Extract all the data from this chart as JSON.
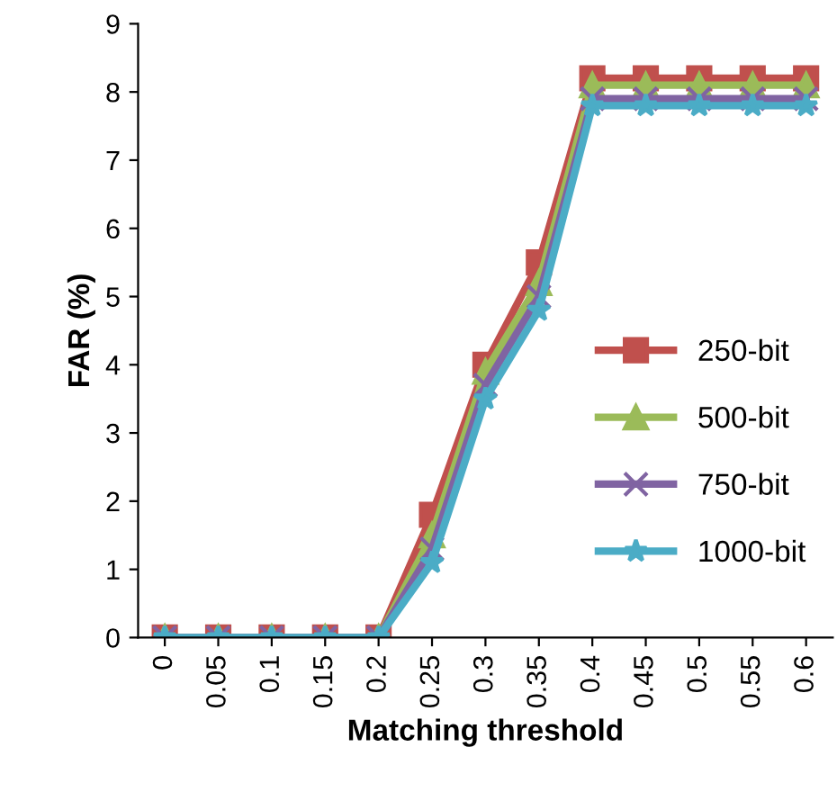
{
  "chart_data": {
    "type": "line",
    "xlabel": "Matching threshold",
    "ylabel": "FAR (%)",
    "categories": [
      "0",
      "0.05",
      "0.1",
      "0.15",
      "0.2",
      "0.25",
      "0.3",
      "0.35",
      "0.4",
      "0.45",
      "0.5",
      "0.55",
      "0.6"
    ],
    "series": [
      {
        "name": "250-bit",
        "color": "#c0504d",
        "marker": "square",
        "values": [
          0,
          0,
          0,
          0,
          0,
          1.8,
          4.0,
          5.5,
          8.2,
          8.2,
          8.2,
          8.2,
          8.2
        ]
      },
      {
        "name": "500-bit",
        "color": "#9bbb59",
        "marker": "triangle",
        "values": [
          0,
          0,
          0,
          0,
          0,
          1.5,
          3.9,
          5.2,
          8.1,
          8.1,
          8.1,
          8.1,
          8.1
        ]
      },
      {
        "name": "750-bit",
        "color": "#8064a2",
        "marker": "cross",
        "values": [
          0,
          0,
          0,
          0,
          0,
          1.3,
          3.7,
          5.0,
          7.9,
          7.9,
          7.9,
          7.9,
          7.9
        ]
      },
      {
        "name": "1000-bit",
        "color": "#4bacc6",
        "marker": "star",
        "values": [
          0,
          0,
          0,
          0,
          0,
          1.1,
          3.5,
          4.8,
          7.8,
          7.8,
          7.8,
          7.8,
          7.8
        ]
      }
    ],
    "ylim": [
      0,
      9
    ],
    "yticks": [
      0,
      1,
      2,
      3,
      4,
      5,
      6,
      7,
      8,
      9
    ],
    "legend": "right",
    "grid": false,
    "line_style": "solid"
  }
}
